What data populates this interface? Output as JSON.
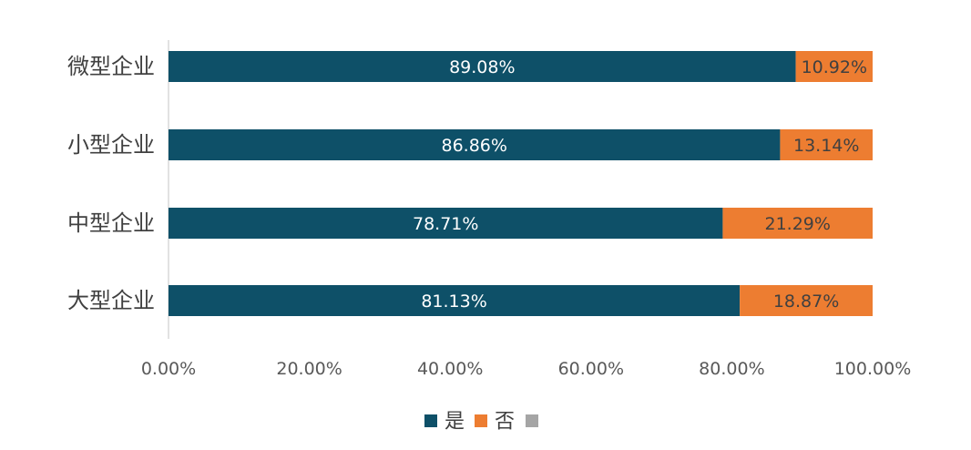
{
  "chart_data": {
    "type": "bar",
    "orientation": "horizontal",
    "stacked": true,
    "categories": [
      "微型企业",
      "小型企业",
      "中型企业",
      "大型企业"
    ],
    "series": [
      {
        "name": "是",
        "values": [
          89.08,
          86.86,
          78.71,
          81.13
        ],
        "labels": [
          "89.08%",
          "86.86%",
          "78.71%",
          "81.13%"
        ],
        "color": "#0e5068",
        "label_color": "#ffffff"
      },
      {
        "name": "否",
        "values": [
          10.92,
          13.14,
          21.29,
          18.87
        ],
        "labels": [
          "10.92%",
          "13.14%",
          "21.29%",
          "18.87%"
        ],
        "color": "#ed7d31",
        "label_color": "#404040"
      },
      {
        "name": "",
        "values": [
          0,
          0,
          0,
          0
        ],
        "labels": [
          "",
          "",
          "",
          ""
        ],
        "color": "#a5a5a5",
        "label_color": "#404040"
      }
    ],
    "xlim": [
      0,
      100
    ],
    "x_ticks": [
      0,
      20,
      40,
      60,
      80,
      100
    ],
    "x_tick_labels": [
      "0.00%",
      "20.00%",
      "40.00%",
      "60.00%",
      "80.00%",
      "100.00%"
    ],
    "title": "",
    "xlabel": "",
    "ylabel": "",
    "grid": false,
    "legend": "bottom"
  }
}
